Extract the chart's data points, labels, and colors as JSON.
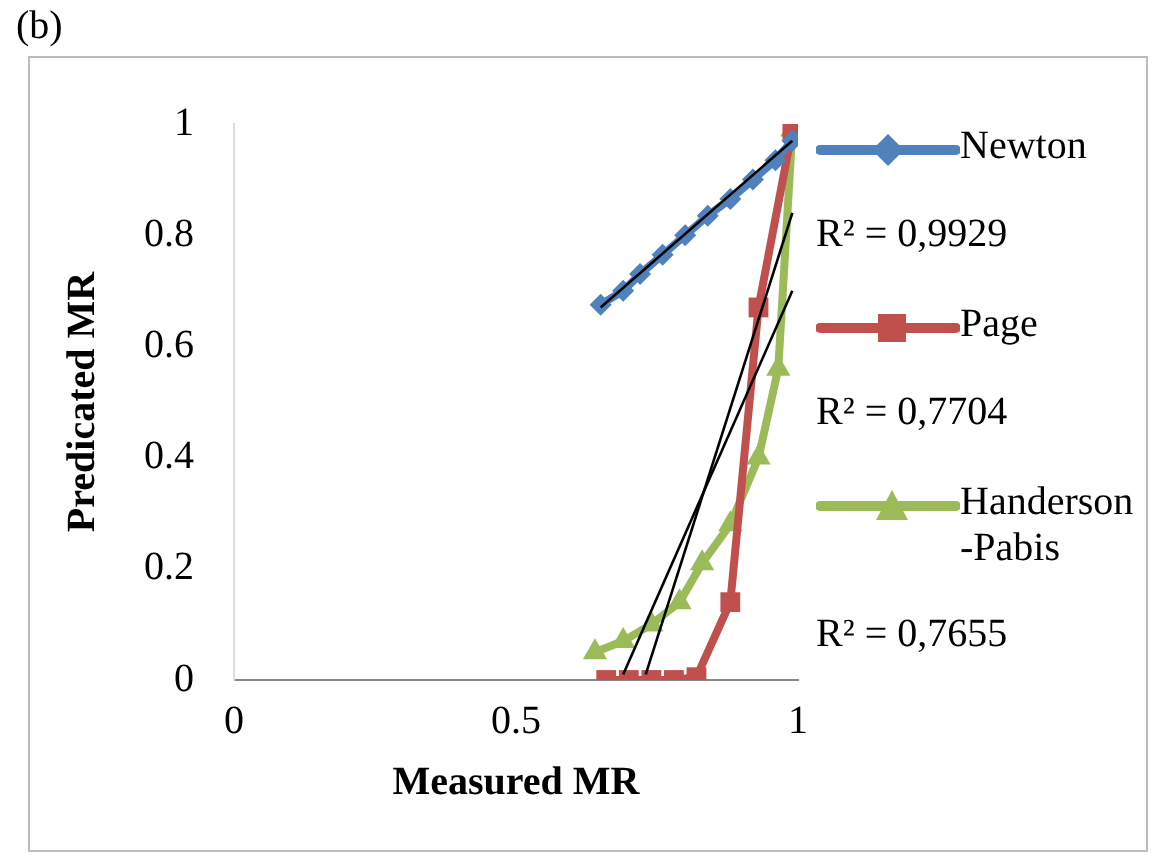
{
  "chart_data": {
    "type": "line",
    "title": "(b)",
    "xlabel": "Measured MR",
    "ylabel": "Predicated MR",
    "xlim": [
      0,
      1
    ],
    "xticks": [
      0,
      0.5,
      1
    ],
    "ylim": [
      0,
      1
    ],
    "yticks": [
      0,
      0.2,
      0.4,
      0.6,
      0.8,
      1
    ],
    "grid": false,
    "legend": "right",
    "annotations": [
      "R² = 0,9929",
      "R² = 0,7704",
      "R² = 0,7655"
    ],
    "series": [
      {
        "name": "Newton",
        "color": "#4f81bd",
        "marker": "diamond",
        "x": [
          0.65,
          0.69,
          0.72,
          0.76,
          0.8,
          0.84,
          0.88,
          0.92,
          0.96,
          0.99
        ],
        "values": [
          0.675,
          0.7,
          0.73,
          0.765,
          0.8,
          0.835,
          0.865,
          0.9,
          0.935,
          0.97
        ]
      },
      {
        "name": "Page",
        "color": "#c0504d",
        "marker": "square",
        "x": [
          0.66,
          0.7,
          0.74,
          0.78,
          0.82,
          0.88,
          0.93,
          0.99,
          1.0
        ],
        "values": [
          0,
          0,
          0,
          0,
          0.005,
          0.14,
          0.67,
          0.99,
          1.0
        ]
      },
      {
        "name": "Handerson-Pabis",
        "color": "#9bbb59",
        "marker": "triangle",
        "x": [
          0.64,
          0.69,
          0.74,
          0.79,
          0.83,
          0.88,
          0.93,
          0.965,
          0.99
        ],
        "values": [
          0.05,
          0.07,
          0.1,
          0.14,
          0.21,
          0.28,
          0.4,
          0.56,
          0.99
        ]
      },
      {
        "type": "line",
        "color": "#000000",
        "x": [
          0.65,
          0.99
        ],
        "values": [
          0.67,
          0.97
        ]
      },
      {
        "type": "line",
        "color": "#000000",
        "x": [
          0.73,
          0.99
        ],
        "values": [
          0.01,
          0.84
        ]
      },
      {
        "type": "line",
        "color": "#000000",
        "x": [
          0.69,
          0.99
        ],
        "values": [
          0.01,
          0.7
        ]
      }
    ]
  }
}
